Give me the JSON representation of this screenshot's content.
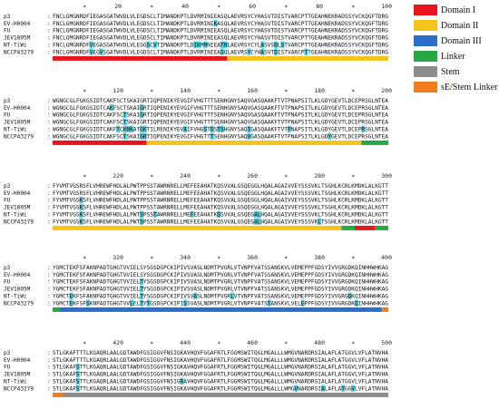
{
  "legend": [
    {
      "label": "Domain I",
      "color": "#e8161c"
    },
    {
      "label": "Domain II",
      "color": "#f6c31a"
    },
    {
      "label": "Domain III",
      "color": "#2a6fc9"
    },
    {
      "label": "Linker",
      "color": "#27a843"
    },
    {
      "label": "Stem",
      "color": "#8c8c8c"
    },
    {
      "label": "sE/Stem Linker",
      "color": "#f07c1c"
    }
  ],
  "alignment": {
    "highlight_color": "#4fd0e0",
    "tick_symbol": "*",
    "strain_names": [
      "p3",
      "EV-H0004",
      "FU",
      "JEV1805M",
      "NT-TiWi",
      "NCCP43279"
    ],
    "blocks": [
      {
        "rows": [
          "FNCLGMGNRDFIEGASGATWVDLVLEGDSCLTIMANDKPTLDVRMINIEASQLAEVRSYCYHASVTDISTVARCPTTGEAHNEKRADSSYVCKQGFTDRG",
          "FNCLGMGNRDFIEGASGATWVDLVLEGDSCLTIMANDKPTLDVRMINIKASQLAEVRSYCYHASVTDISTVARCPTTGEAHNEKRADSSYVCKQGFTDRG",
          "FNCLGMGNRDFIEGASGATWVDLVLEGDSCLTIMANDKPTLDVRMINIEASQLAEVRSYCYHASVTDISTVARCPTTGEAHNEKRADSSYVCKQGFTDRG",
          "FNCLGMGNRDFIEGASGATWVDLVLEGDSCLTIMANDKPTLDVRMINIEASQLAEVRSYCYHASVTDISTVARCPTTGEAHNEKRADSSYVCKQGFTDRG",
          "FNCLGMGNRDFVEGASGATWVDLVLEGGSCVTIMANDKPTLDIKMMNIEATNLAEVRSYCYLASVSDLSTVARCPTTGEAHNEKRADSSYVCKQGFTDRG",
          "FNCLGMGNRDFVEGVSGATWVDLVLEGDSCLTIMANDKPTLDVRMINIEASQLAEVRSYCYHASVTDISTVARCPTTGEAHNEKRADSSYVCKQGFTDRG"
        ],
        "ticks": [
          "20",
          "40",
          "60",
          "80",
          "100"
        ],
        "highlights": [
          [
            1,
            48
          ],
          [
            4,
            11
          ],
          [
            4,
            28
          ],
          [
            4,
            30
          ],
          [
            4,
            42
          ],
          [
            4,
            43
          ],
          [
            4,
            45
          ],
          [
            4,
            50
          ],
          [
            4,
            51
          ],
          [
            4,
            62
          ],
          [
            4,
            66
          ],
          [
            4,
            68
          ],
          [
            5,
            11
          ],
          [
            5,
            14
          ],
          [
            5,
            50
          ],
          [
            5,
            58
          ],
          [
            5,
            62
          ],
          [
            5,
            66
          ],
          [
            5,
            75
          ]
        ],
        "domains": [
          [
            0,
            52,
            "#e8161c"
          ],
          [
            52,
            100,
            "#f6c31a"
          ]
        ]
      },
      {
        "rows": [
          "WGNGCGLFGKGSIDTCAKFSCTSKAIGRTIQPENIKYEVGIFVHGTTTSENHGNYSAQVGASQAAKFTVTPNAPSITLKLGDYGEVTLDCEPRSGLNTEA",
          "WGNGCGLFGKGSIDTCAKFSCTSKAIGRTIQPENIKYEVGIFVHGTTTSENHGNYSAQVGASQAAKFTVTPNAPSITLKLGDYGEVTLDCEPRSGLNTEA",
          "WGNGCGLFGKGSIDTCAKFSCTSKAIGRTIQPENIKYEVGIFVHGTTTSENHGNYSAQVGASQAAKFTVTPNAPSITLKLGDYGEVTLDCEPRSGLNTEA",
          "WGNGCGLFGKGSIDTCAKFSCTSKAIGRTIQPENIKYEVGIFVHGTTTSENHGNYSAQVGASQAAKFTVTPNAPSITLKLGDYGEVTLDCEPRSGLNTEA",
          "WGNGCGLFGKGSIDTCAKFTCKNKATGKTILRENIKYEVAIFVHGSTDSTSHGNYSAQIGASQAAKFTVTPNAPSITLKLGDYGEVTLDCEPRSGLNTEA",
          "WGNGCGLFGKGSIDTCAKFSCTSKAIGRTIQPENIKYEVGIFVHGTTTSENHGNYSAQVGASQAAKFTVTPNAPSITLKLGDYGEVTLDCEPRSGLNTEA"
        ],
        "ticks": [
          "120",
          "140",
          "160",
          "180",
          "200"
        ],
        "highlights": [
          [
            1,
            17
          ],
          [
            1,
            26
          ],
          [
            2,
            21
          ],
          [
            2,
            26
          ],
          [
            3,
            21
          ],
          [
            4,
            19
          ],
          [
            4,
            21
          ],
          [
            4,
            22
          ],
          [
            4,
            23
          ],
          [
            4,
            26
          ],
          [
            4,
            27
          ],
          [
            4,
            39
          ],
          [
            4,
            45
          ],
          [
            4,
            47
          ],
          [
            4,
            49
          ],
          [
            4,
            50
          ],
          [
            4,
            58
          ],
          [
            4,
            70
          ],
          [
            4,
            92
          ],
          [
            5,
            21
          ],
          [
            5,
            26
          ],
          [
            5,
            27
          ],
          [
            5,
            47
          ],
          [
            5,
            58
          ],
          [
            5,
            82
          ]
        ],
        "domains": [
          [
            0,
            28,
            "#e8161c"
          ],
          [
            28,
            92,
            "#f6c31a"
          ],
          [
            92,
            100,
            "#27a843"
          ]
        ]
      },
      {
        "rows": [
          "FYVMTVGSRSFLVHREWFHDLALPWTPPSSTAWRNRELLMEFEEAHATKQSVVALGSQEGGLHQALAGAIVVEYSSSVKLTSGHLKCRLKMDKLALKGTT",
          "FYVMTVGSRSFLVHREWFHDLALPWTPPSSTAWRNRELLMEFEEAHATKQSVVALGSQEGGLHQALAGAIVVEYSSSVKLTSGHLKCRLKMDKLALKGTT",
          "FYVMTVGSKSFLVHREWFHDLALPWTPPSSTAWRNRELLMEFEEAHATKQSVVALGSQEGGLHQALAGAIVVEYSSSVKLTSGHLKCRLKMDKLALKGTT",
          "FYVMTVGSKSFLVHREWFHDLALPWTPPSSTAWRNRELLMEFEEAHATKQSVVALGSQEGGLHQALAGAIVVEYSSSVKLTSGHLKCRLKMDKLALKGTT",
          "FYVMTVGSKSFLVHREWFHDLALPWTSPSSTAWRNRELLMEFEEAHATKQSVVALGSQEGALHQALAGAIVVEYSSSVKLTSGHLKCRLKMDKLALKGTT",
          "FYVMTVGSKSFLVHREWFHDLALPWTSPSSTAWRNRELLMEFEEAHATKQSVVALGSQEGALHQALAGAIVVEYSSSVKLTSGHLKCRLKMDKLALKGTT"
        ],
        "ticks": [
          "220",
          "240",
          "260",
          "280",
          "300"
        ],
        "highlights": [
          [
            2,
            8
          ],
          [
            3,
            8
          ],
          [
            4,
            8
          ],
          [
            4,
            26
          ],
          [
            4,
            30
          ],
          [
            4,
            41
          ],
          [
            4,
            49
          ],
          [
            4,
            60
          ],
          [
            4,
            61
          ],
          [
            5,
            8
          ],
          [
            5,
            26
          ],
          [
            5,
            60
          ],
          [
            5,
            61
          ],
          [
            5,
            79
          ]
        ],
        "domains": [
          [
            0,
            86,
            "#f6c31a"
          ],
          [
            86,
            90,
            "#27a843"
          ],
          [
            90,
            96,
            "#e8161c"
          ],
          [
            96,
            100,
            "#27a843"
          ]
        ]
      },
      {
        "rows": [
          "YGMCTEKFSFAKNPADTGHGTVVIELSYSGSDGPCKIPIVSVASLNDMTPVGRLVTVNPFVATSSANSKVLVEMEPPFGDSYIVVGRGDKQINHHWHKAG",
          "YGMCTEKFSFAKNPADTGHGTVVIELSYSGSDGPCKIPIVSVASLNDMTPVGRLVTVNPFVATSSANSKVLVEMEPPFGDSYIVVGRGDKQINHHWHKAG",
          "YGMCTEKFSFAKNPADTGHGTVVIELTYSGSDGPCKIPIVSVASLNDMTPVGRLVTVNPFVATSSANSKVLVEMEPPFGDSYIVVGRGDKQINHHWHKAG",
          "YGMCTEKFSFAKNPADTGHGTVVIELTYSGSDGPCKIPIVSVASLNDMTPVGRLVTVNPFVATSSANSKVLVEMEPPFGDSYIVVGRGDKQINHHWHKAG",
          "YGMCTEKFSFAKNPADTGHGTVVIELTYSGSDGPCKIPIVSVASLNDMTPVGRLVTVNPFVATSSANSKVLVEMEPPFGDSYIVVGRGDKQINHHWHKAG",
          "YGMCTEKFSFSKNPADTGHGTVVLELTYTGSDGPCKIPISSVASLNDMTPVGRLVTVNPFVATSTANSKVLVELEPPFGDSYIVVGRGDKQINHHWHKAG"
        ],
        "ticks": [
          "320",
          "340",
          "360",
          "380",
          "400"
        ],
        "highlights": [
          [
            2,
            26
          ],
          [
            3,
            26
          ],
          [
            4,
            5
          ],
          [
            4,
            26
          ],
          [
            4,
            42
          ],
          [
            4,
            53
          ],
          [
            4,
            88
          ],
          [
            5,
            5
          ],
          [
            5,
            10
          ],
          [
            5,
            23
          ],
          [
            5,
            26
          ],
          [
            5,
            28
          ],
          [
            5,
            39
          ],
          [
            5,
            64
          ],
          [
            5,
            74
          ],
          [
            5,
            90
          ]
        ],
        "domains": [
          [
            0,
            2,
            "#27a843"
          ],
          [
            2,
            98,
            "#2a6fc9"
          ],
          [
            98,
            100,
            "#f07c1c"
          ]
        ]
      },
      {
        "rows": [
          "STLGKAFTTTLKGAQRLAALGDTAWDFGSIGGVFNSIGKAVHQVFGGAFRTLFGGMSWITQGLMGALLLWMGVNARDRSIALAFLATGGVLVFLATNVHA",
          "STLGKAFTTTLKGAQRLAALGDTAWDFGSIGGVFNSIGKAVHQVFGGAFRTLFGGMSWITQGLMGALLLWMGVNARDRSIALAFLATGGVLVFLATNVHA",
          "STLGKAFSTTLKGAQRLAALGDTAWDFGSIGGVFNSIGKAVHQVFGGAFRTLFGGMSWITQGLMGALLLWMGVNARDRSIALAFLATGGVLVFLATNVHA",
          "STLGKAFSTTLKGAQRLAALGDTAWDFGSIGGVFNSIGKAVHQVFGGAFRTLFGGMSWITQGLMGALLLWMGVNARDRSIALAFLATGGVLVFLATNVHA",
          "STLGKAFSTTLKGAQRLAALGDTAWDFGSIGGVFNSIGRAVHQVFGGAFRTLFGGMSWITQGLMGALLLWMGVNARDRSIALAFLATGGVLVFLATNVHA",
          "STLGKAFSTTLKGAQRLAALGDTAWDFGSIGGVFNSIGKAVHQVFGGAFRTLFGGMSWITQGLMGALLLWMGVNARDRSIALAFLATGGVLVFLATNVHA"
        ],
        "ticks": [
          "420",
          "440",
          "460",
          "480",
          "500"
        ],
        "highlights": [
          [
            2,
            7
          ],
          [
            3,
            7
          ],
          [
            4,
            7
          ],
          [
            4,
            38
          ],
          [
            5,
            7
          ],
          [
            5,
            72
          ],
          [
            5,
            80
          ],
          [
            5,
            86
          ],
          [
            5,
            89
          ]
        ],
        "domains": [
          [
            0,
            3,
            "#f07c1c"
          ],
          [
            3,
            100,
            "#8c8c8c"
          ]
        ]
      }
    ]
  }
}
